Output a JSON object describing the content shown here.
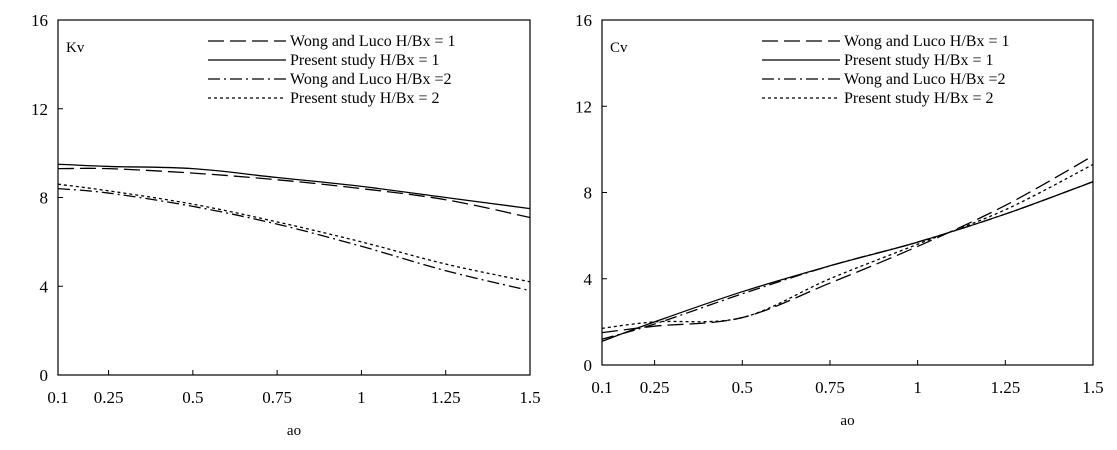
{
  "chart_data": [
    {
      "type": "line",
      "title": "",
      "panel_label": "Kv",
      "xlabel": "ao",
      "ylabel": "",
      "xlim": [
        0.1,
        1.5
      ],
      "ylim": [
        0,
        16
      ],
      "x_ticks": [
        "0.1",
        "0.25",
        "0.5",
        "0.75",
        "1",
        "1.25",
        "1.5"
      ],
      "y_ticks": [
        "0",
        "4",
        "8",
        "12",
        "16"
      ],
      "grid": false,
      "legend_position": "top-right",
      "x": [
        0.1,
        0.25,
        0.5,
        0.75,
        1.0,
        1.25,
        1.5
      ],
      "series": [
        {
          "name": "Wong and Luco H/Bx = 1",
          "style": "dashed",
          "values": [
            9.3,
            9.3,
            9.1,
            8.8,
            8.4,
            7.9,
            7.1
          ]
        },
        {
          "name": "Present study H/Bx = 1",
          "style": "solid",
          "values": [
            9.5,
            9.4,
            9.3,
            8.9,
            8.5,
            8.0,
            7.5
          ]
        },
        {
          "name": "Wong and Luco  H/Bx =2",
          "style": "dashdot",
          "values": [
            8.4,
            8.2,
            7.6,
            6.8,
            5.8,
            4.7,
            3.8
          ]
        },
        {
          "name": "Present study H/Bx = 2",
          "style": "dotted",
          "values": [
            8.6,
            8.3,
            7.7,
            6.9,
            6.0,
            5.0,
            4.2
          ]
        }
      ]
    },
    {
      "type": "line",
      "title": "",
      "panel_label": "Cv",
      "xlabel": "ao",
      "ylabel": "",
      "xlim": [
        0.1,
        1.5
      ],
      "ylim": [
        0,
        16
      ],
      "x_ticks": [
        "0.1",
        "0.25",
        "0.5",
        "0.75",
        "1",
        "1.25",
        "1.5"
      ],
      "y_ticks": [
        "0",
        "4",
        "8",
        "12",
        "16"
      ],
      "grid": false,
      "legend_position": "top-right",
      "x": [
        0.1,
        0.25,
        0.5,
        0.75,
        1.0,
        1.25,
        1.5
      ],
      "series": [
        {
          "name": "Wong and Luco H/Bx = 1",
          "style": "dashed",
          "values": [
            1.5,
            1.8,
            2.2,
            3.8,
            5.5,
            7.4,
            9.7
          ]
        },
        {
          "name": "Present study H/Bx = 1",
          "style": "solid",
          "values": [
            1.1,
            2.0,
            3.4,
            4.6,
            5.7,
            7.0,
            8.5
          ]
        },
        {
          "name": "Wong and Luco  H/Bx =2",
          "style": "dashdot",
          "values": [
            1.2,
            1.9,
            3.3,
            4.6,
            5.7,
            7.0,
            8.5
          ]
        },
        {
          "name": "Present study H/Bx = 2",
          "style": "dotted",
          "values": [
            1.7,
            2.0,
            2.2,
            4.0,
            5.6,
            7.2,
            9.3
          ]
        }
      ]
    }
  ]
}
